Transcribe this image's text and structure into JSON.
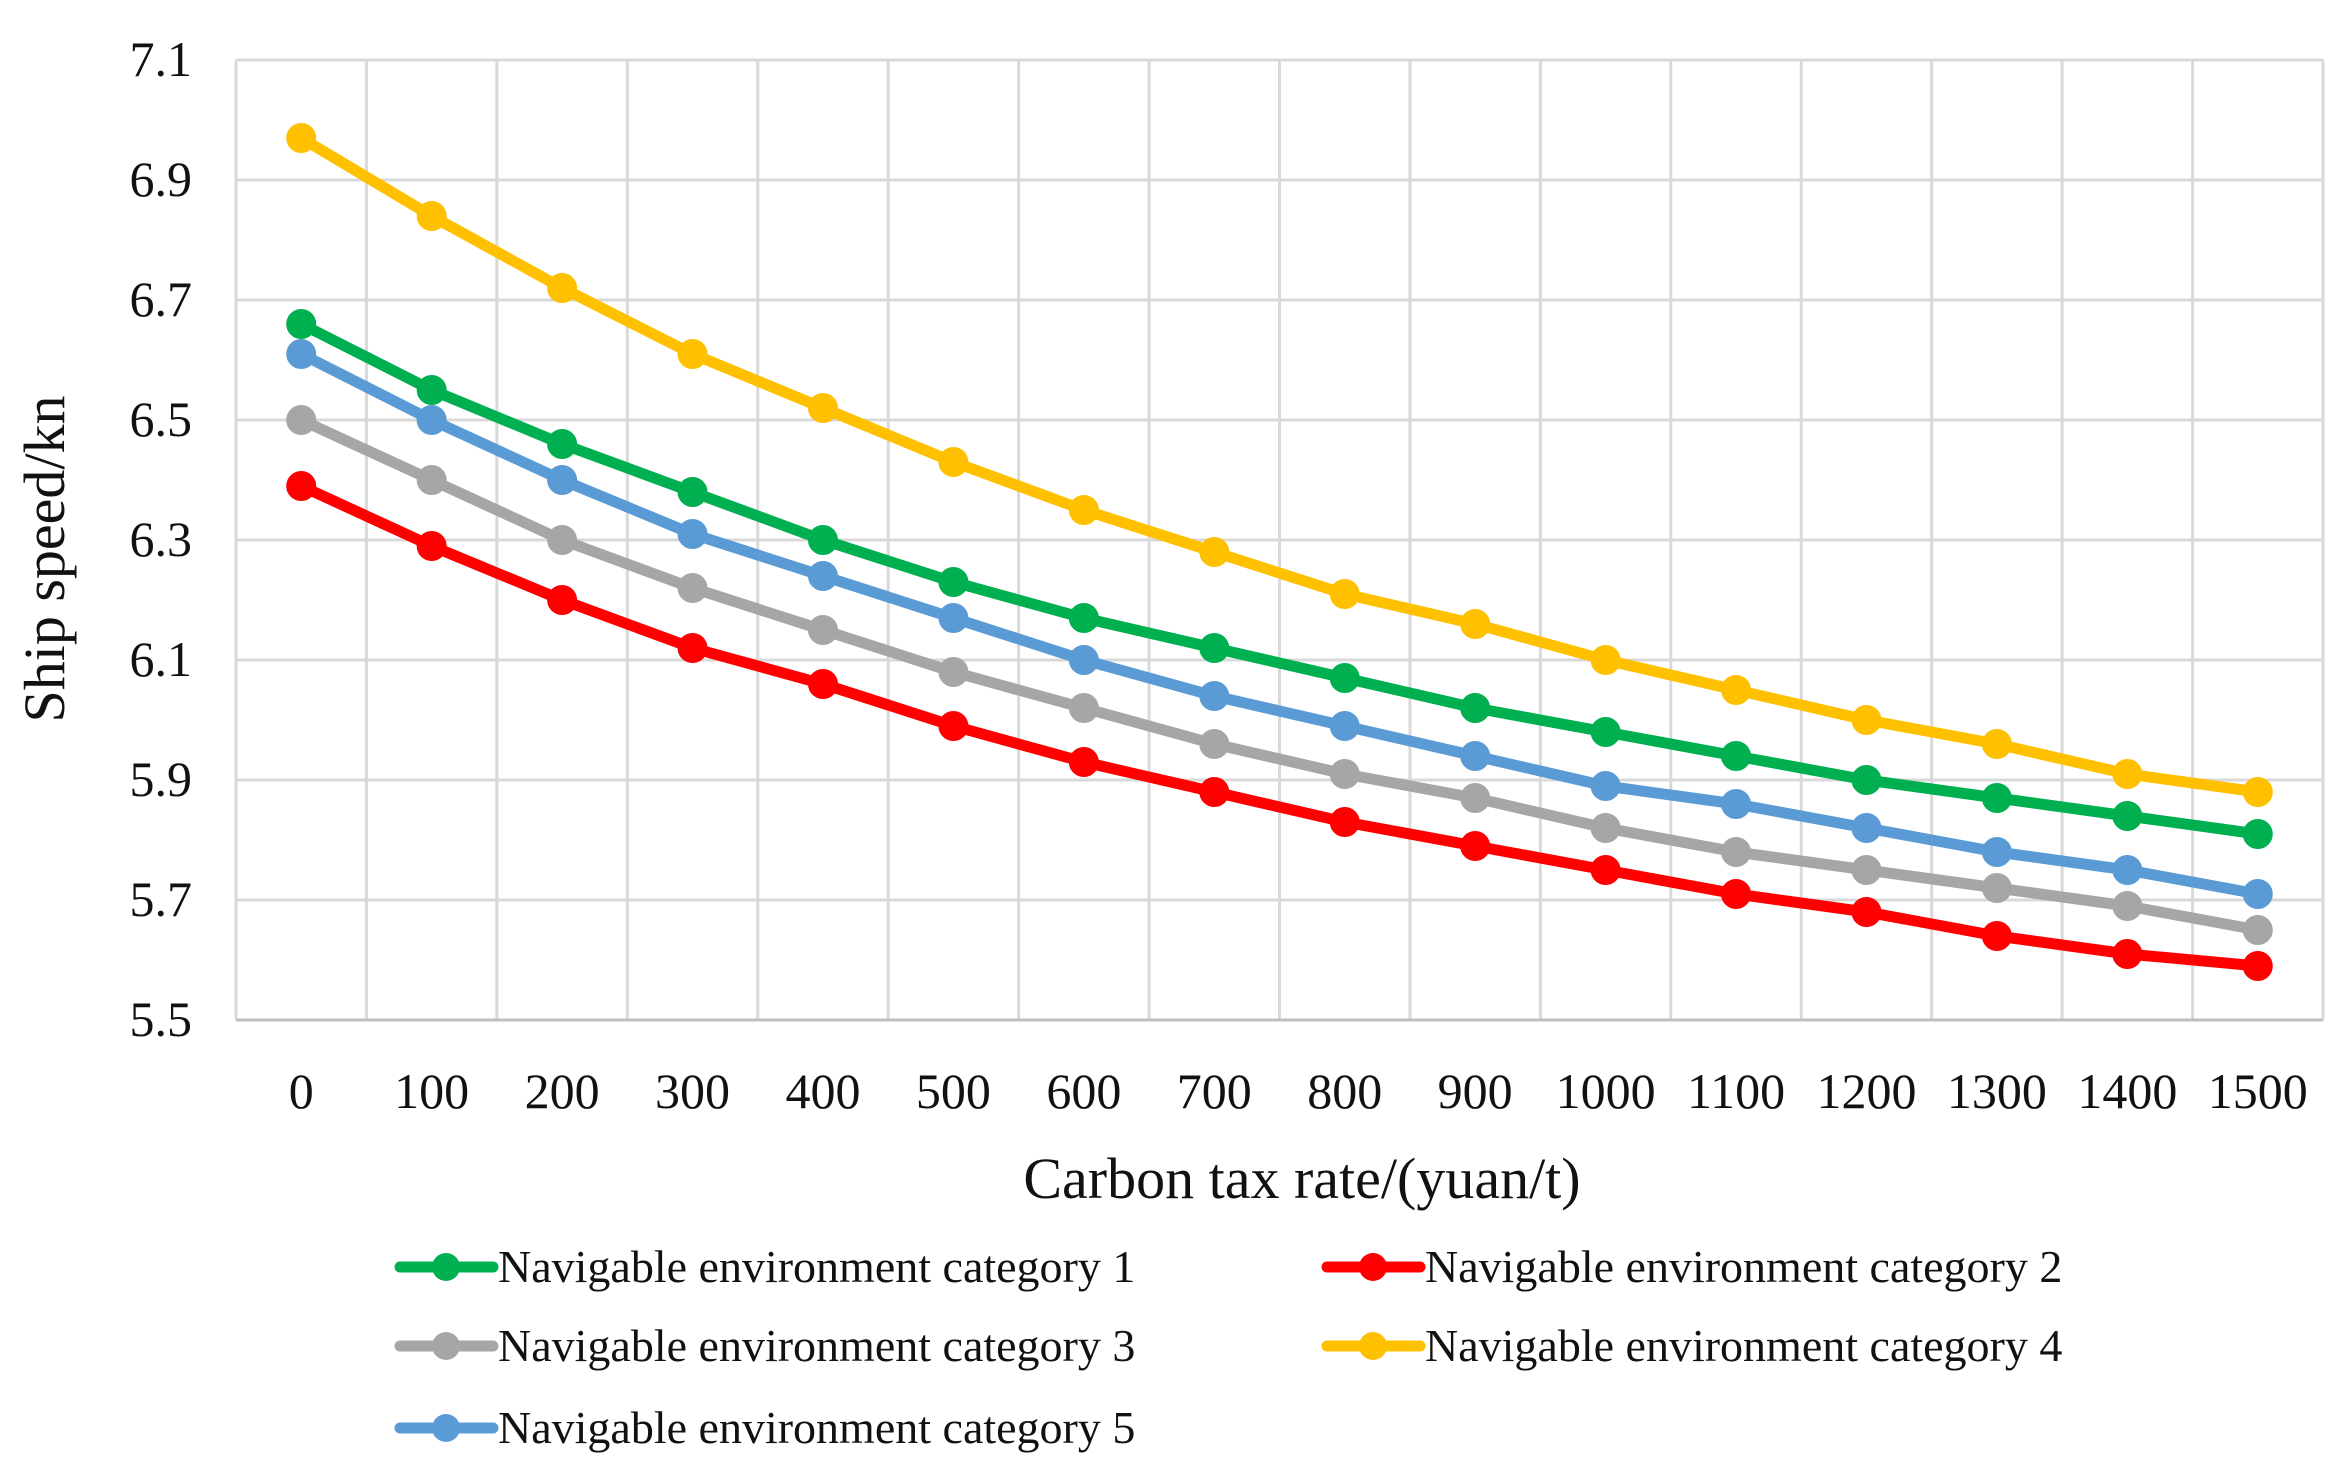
{
  "chart_data": {
    "type": "line",
    "title": "",
    "xlabel": "Carbon tax rate/(yuan/t)",
    "ylabel": "Ship speed/kn",
    "categories": [
      "0",
      "100",
      "200",
      "300",
      "400",
      "500",
      "600",
      "700",
      "800",
      "900",
      "1000",
      "1100",
      "1200",
      "1300",
      "1400",
      "1500"
    ],
    "ylim": [
      5.5,
      7.1
    ],
    "yticks": [
      "5.5",
      "5.7",
      "5.9",
      "6.1",
      "6.3",
      "6.5",
      "6.7",
      "6.9",
      "7.1"
    ],
    "grid": true,
    "legend_position": "bottom",
    "series": [
      {
        "name": "Navigable environment category 1",
        "color": "#00b050",
        "values": [
          6.66,
          6.55,
          6.46,
          6.38,
          6.3,
          6.23,
          6.17,
          6.12,
          6.07,
          6.02,
          5.98,
          5.94,
          5.9,
          5.87,
          5.84,
          5.81
        ]
      },
      {
        "name": "Navigable environment category 2",
        "color": "#ff0000",
        "values": [
          6.39,
          6.29,
          6.2,
          6.12,
          6.06,
          5.99,
          5.93,
          5.88,
          5.83,
          5.79,
          5.75,
          5.71,
          5.68,
          5.64,
          5.61,
          5.59
        ]
      },
      {
        "name": "Navigable environment category 3",
        "color": "#a6a6a6",
        "values": [
          6.5,
          6.4,
          6.3,
          6.22,
          6.15,
          6.08,
          6.02,
          5.96,
          5.91,
          5.87,
          5.82,
          5.78,
          5.75,
          5.72,
          5.69,
          5.65
        ]
      },
      {
        "name": "Navigable environment category 4",
        "color": "#ffc000",
        "values": [
          6.97,
          6.84,
          6.72,
          6.61,
          6.52,
          6.43,
          6.35,
          6.28,
          6.21,
          6.16,
          6.1,
          6.05,
          6.0,
          5.96,
          5.91,
          5.88
        ]
      },
      {
        "name": "Navigable environment category 5",
        "color": "#5b9bd5",
        "values": [
          6.61,
          6.5,
          6.4,
          6.31,
          6.24,
          6.17,
          6.1,
          6.04,
          5.99,
          5.94,
          5.89,
          5.86,
          5.82,
          5.78,
          5.75,
          5.71
        ]
      }
    ]
  }
}
